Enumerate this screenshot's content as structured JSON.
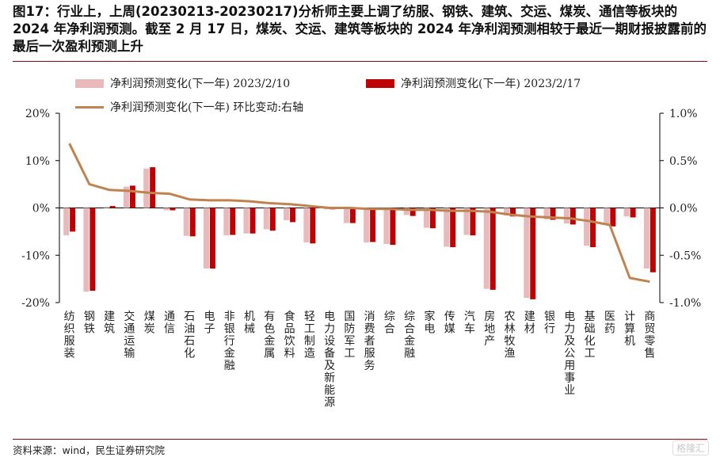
{
  "title": "图17：行业上，上周(20230213-20230217)分析师主要上调了纺服、钢铁、建筑、交运、煤炭、通信等板块的 2024 年净利润预测。截至 2 月 17 日，煤炭、交运、建筑等板块的 2024 年净利润预测相较于最近一期财报披露前的最后一次盈利预测上升",
  "legend": {
    "s1": "净利润预测变化(下一年) 2023/2/10",
    "s2": "净利润预测变化(下一年) 2023/2/17",
    "s3": "净利润预测变化(下一年) 环比变动:右轴"
  },
  "source": "资料来源：wind，民生证券研究院",
  "watermark": "格隆汇",
  "colors": {
    "s1": "#e9b9bb",
    "s2": "#c00000",
    "s3": "#c0824f",
    "axis": "#000000"
  },
  "chart_data": {
    "type": "bar",
    "categories": [
      "纺织服装",
      "钢铁",
      "建筑",
      "交通运输",
      "煤炭",
      "通信",
      "石油石化",
      "电子",
      "非银行金融",
      "机械",
      "有色金属",
      "食品饮料",
      "轻工制造",
      "电力设备及新能源",
      "国防军工",
      "消费者服务",
      "综合",
      "综合金融",
      "家电",
      "传媒",
      "汽车",
      "房地产",
      "农林牧渔",
      "建材",
      "银行",
      "电力及公用事业",
      "基础化工",
      "医药",
      "计算机",
      "商贸零售"
    ],
    "left_axis": {
      "ylim": [
        -20,
        20
      ],
      "ticks": [
        "20%",
        "10%",
        "0%",
        "-10%",
        "-20%"
      ],
      "tick_values": [
        20,
        10,
        0,
        -10,
        -20
      ]
    },
    "right_axis": {
      "ylim": [
        -1.0,
        1.0
      ],
      "ticks": [
        "1.0%",
        "0.5%",
        "0.0%",
        "-0.5%",
        "-1.0%"
      ],
      "tick_values": [
        1.0,
        0.5,
        0.0,
        -0.5,
        -1.0
      ]
    },
    "series": [
      {
        "name": "净利润预测变化(下一年) 2023/2/10",
        "type": "bar",
        "axis": "left",
        "values": [
          -5.8,
          -17.7,
          0.2,
          4.5,
          8.3,
          -0.5,
          -5.9,
          -12.8,
          -5.8,
          -5.4,
          -4.5,
          -2.6,
          -7.3,
          -0.3,
          -3.2,
          -7.3,
          -7.6,
          -1.5,
          -4.2,
          -8.2,
          -5.7,
          -17.1,
          -1.6,
          -19.0,
          -2.4,
          -3.3,
          -8.0,
          -3.5,
          -1.8,
          -12.8
        ]
      },
      {
        "name": "净利润预测变化(下一年) 2023/2/17",
        "type": "bar",
        "axis": "left",
        "values": [
          -5.0,
          -17.5,
          0.4,
          4.7,
          8.6,
          -0.5,
          -6.0,
          -12.8,
          -5.7,
          -5.4,
          -4.8,
          -3.0,
          -7.5,
          -0.3,
          -3.2,
          -7.2,
          -7.8,
          -1.7,
          -4.3,
          -8.3,
          -5.8,
          -17.3,
          -1.8,
          -19.3,
          -2.5,
          -3.5,
          -8.3,
          -3.9,
          -2.0,
          -13.6
        ]
      },
      {
        "name": "净利润预测变化(下一年) 环比变动:右轴",
        "type": "line",
        "axis": "right",
        "values": [
          0.68,
          0.25,
          0.19,
          0.18,
          0.16,
          0.15,
          0.09,
          0.08,
          0.08,
          0.07,
          0.05,
          0.04,
          0.02,
          0.0,
          0.0,
          -0.01,
          -0.01,
          -0.02,
          -0.02,
          -0.03,
          -0.03,
          -0.04,
          -0.07,
          -0.09,
          -0.1,
          -0.11,
          -0.14,
          -0.18,
          -0.74,
          -0.78
        ]
      }
    ],
    "grid": false,
    "legend_position": "top"
  }
}
